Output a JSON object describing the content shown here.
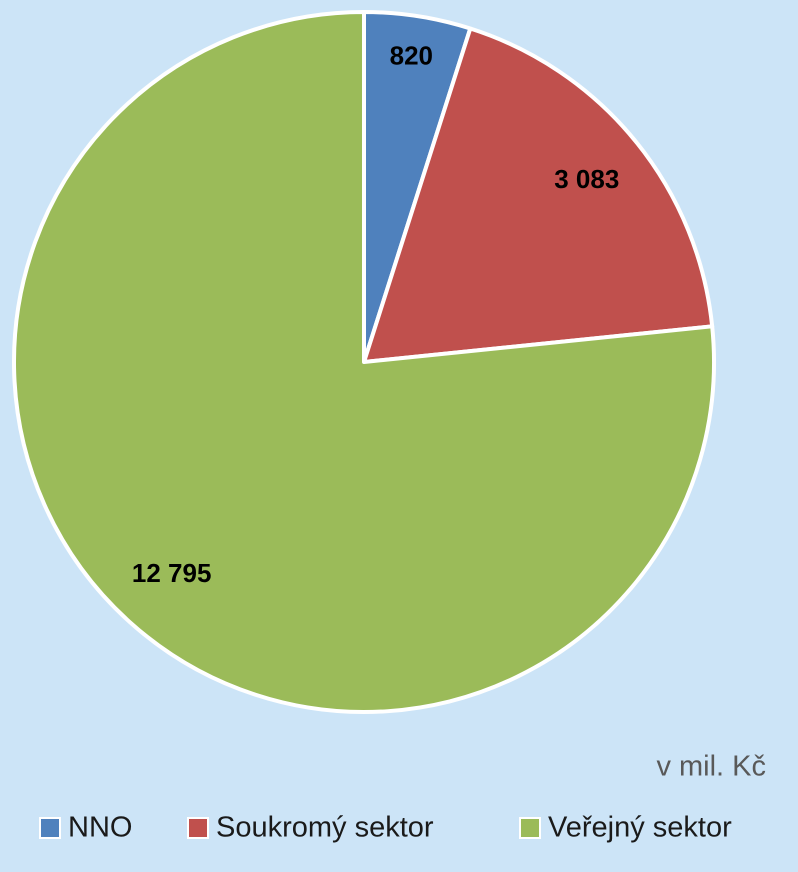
{
  "chart_data": {
    "type": "pie",
    "categories": [
      "NNO",
      "Soukromý sektor",
      "Veřejný sektor"
    ],
    "values": [
      820,
      3083,
      12795
    ],
    "value_labels": [
      "820",
      "3 083",
      "12 795"
    ],
    "colors": [
      "#4f81bd",
      "#c0504d",
      "#9bbb59"
    ],
    "unit_note": "v mil. Kč",
    "legend": "bottom"
  }
}
